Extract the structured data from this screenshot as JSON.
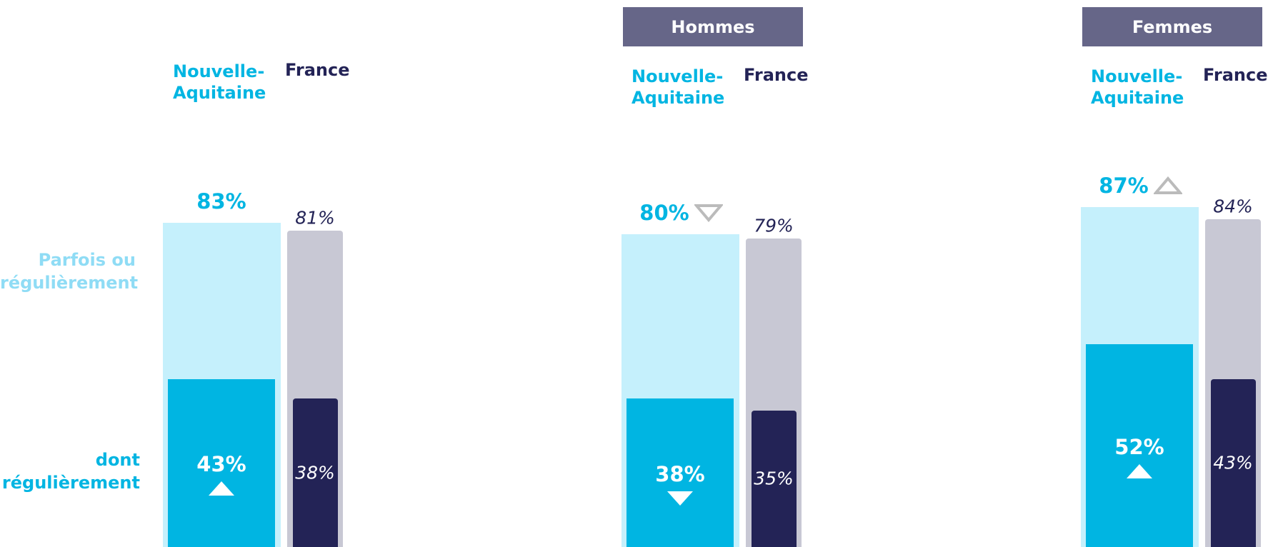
{
  "chart_data": [
    {
      "type": "bar",
      "categories": [
        "Nouvelle-Aquitaine",
        "France"
      ],
      "ylim": [
        0,
        100
      ],
      "series": [
        {
          "name": "Parfois ou régulièrement",
          "colors": [
            "#c5f0fc",
            "#c8c8d4"
          ],
          "values": [
            83,
            81
          ],
          "value_labels": [
            "83%",
            "81%"
          ],
          "trend": [
            null,
            null
          ]
        },
        {
          "name": "dont régulièrement",
          "colors": [
            "#00b5e2",
            "#232356"
          ],
          "values": [
            43,
            38
          ],
          "value_labels": [
            "43%",
            "38%"
          ],
          "trend": [
            "up",
            null
          ]
        }
      ]
    },
    {
      "type": "bar",
      "title": "Hommes",
      "categories": [
        "Nouvelle-Aquitaine",
        "France"
      ],
      "ylim": [
        0,
        100
      ],
      "series": [
        {
          "colors": [
            "#c5f0fc",
            "#c8c8d4"
          ],
          "values": [
            80,
            79
          ],
          "value_labels": [
            "80%",
            "79%"
          ],
          "trend": [
            "down",
            null
          ]
        },
        {
          "colors": [
            "#00b5e2",
            "#232356"
          ],
          "values": [
            38,
            35
          ],
          "value_labels": [
            "38%",
            "35%"
          ],
          "trend": [
            "down",
            null
          ]
        }
      ]
    },
    {
      "type": "bar",
      "title": "Femmes",
      "categories": [
        "Nouvelle-Aquitaine",
        "France"
      ],
      "ylim": [
        0,
        100
      ],
      "series": [
        {
          "colors": [
            "#c5f0fc",
            "#c8c8d4"
          ],
          "values": [
            87,
            84
          ],
          "value_labels": [
            "87%",
            "84%"
          ],
          "trend": [
            "up",
            null
          ]
        },
        {
          "colors": [
            "#00b5e2",
            "#232356"
          ],
          "values": [
            52,
            43
          ],
          "value_labels": [
            "52%",
            "43%"
          ],
          "trend": [
            "up",
            null
          ]
        }
      ]
    }
  ]
}
